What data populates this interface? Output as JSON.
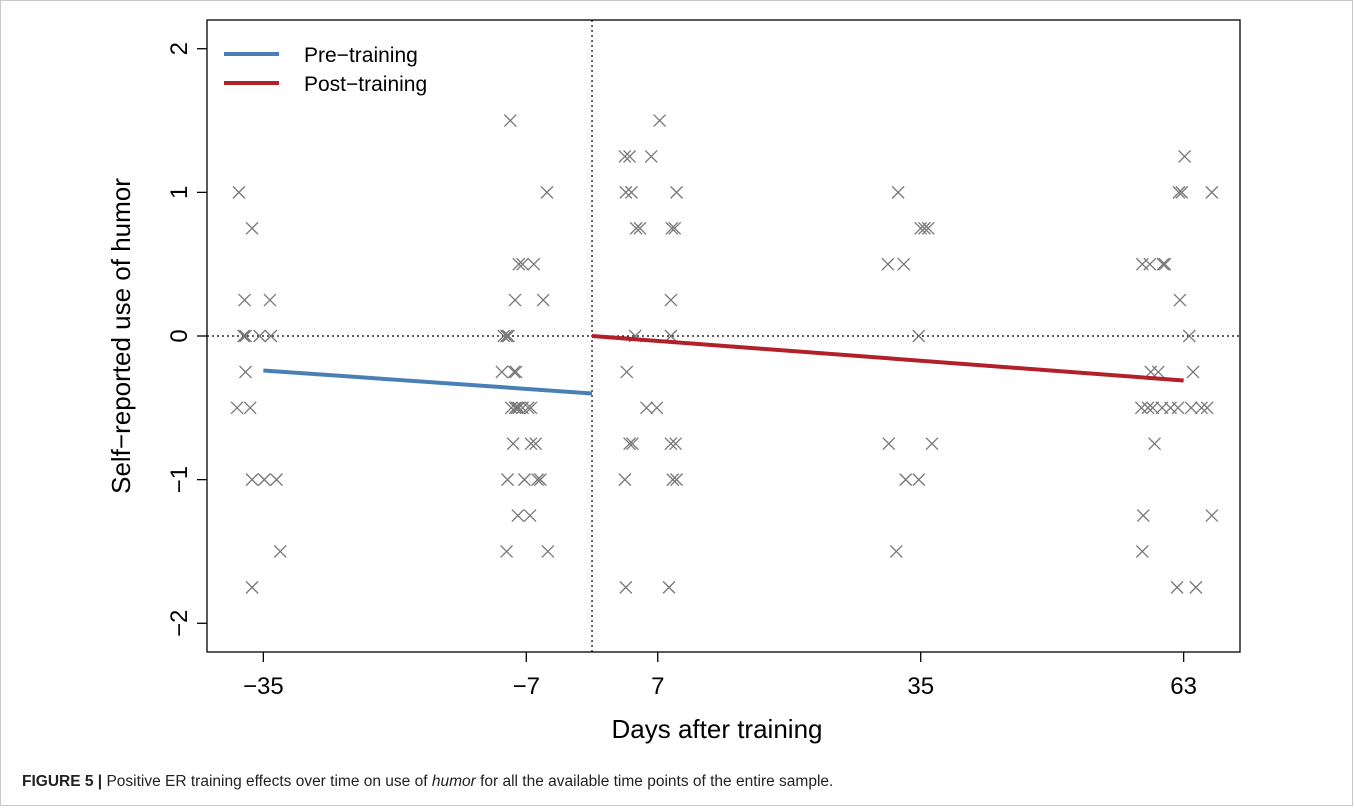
{
  "caption": {
    "label": "FIGURE 5 |",
    "text_before": " Positive ER training effects over time on use of ",
    "emphasis": "humor",
    "text_after": " for all the available time points of the entire sample."
  },
  "chart_data": {
    "type": "scatter",
    "title": "",
    "xlabel": "Days after training",
    "ylabel": "Self−reported use of humor",
    "xlim": [
      -41,
      69
    ],
    "ylim": [
      -2.2,
      2.2
    ],
    "xticks": [
      -35,
      -7,
      7,
      35,
      63
    ],
    "xtick_labels": [
      "−35",
      "−7",
      "7",
      "35",
      "63"
    ],
    "yticks": [
      -2,
      -1,
      0,
      1,
      2
    ],
    "ytick_labels": [
      "−2",
      "−1",
      "0",
      "1",
      "2"
    ],
    "grid": false,
    "legend_position": "top-left",
    "reference_lines": {
      "vertical_x": 0,
      "horizontal_y": 0
    },
    "marker": "x",
    "marker_color": "#777777",
    "series": [
      {
        "name": "Pre−training",
        "color": "#4a7fb5",
        "x": [
          -35,
          0
        ],
        "y": [
          -0.24,
          -0.4
        ]
      },
      {
        "name": "Post−training",
        "color": "#b2202a",
        "x": [
          0,
          63
        ],
        "y": [
          0.0,
          -0.31
        ]
      }
    ],
    "points": [
      [
        -37.6,
        1.0
      ],
      [
        -36.2,
        0.75
      ],
      [
        -37.0,
        0.25
      ],
      [
        -34.3,
        0.25
      ],
      [
        -36.9,
        0.0
      ],
      [
        -37.1,
        0.0
      ],
      [
        -35.4,
        0.0
      ],
      [
        -34.2,
        0.0
      ],
      [
        -36.9,
        -0.25
      ],
      [
        -37.8,
        -0.5
      ],
      [
        -36.4,
        -0.5
      ],
      [
        -36.2,
        -1.0
      ],
      [
        -34.9,
        -1.0
      ],
      [
        -33.6,
        -1.0
      ],
      [
        -33.2,
        -1.5
      ],
      [
        -36.2,
        -1.75
      ],
      [
        -8.7,
        1.5
      ],
      [
        -4.8,
        1.0
      ],
      [
        -7.8,
        0.5
      ],
      [
        -7.4,
        0.5
      ],
      [
        -6.2,
        0.5
      ],
      [
        -8.2,
        0.25
      ],
      [
        -5.2,
        0.25
      ],
      [
        -9.4,
        0.0
      ],
      [
        -9.1,
        0.0
      ],
      [
        -8.9,
        0.0
      ],
      [
        -9.6,
        -0.25
      ],
      [
        -8.3,
        -0.25
      ],
      [
        -8.1,
        -0.25
      ],
      [
        -8.6,
        -0.5
      ],
      [
        -8.2,
        -0.5
      ],
      [
        -8.0,
        -0.5
      ],
      [
        -7.8,
        -0.5
      ],
      [
        -7.4,
        -0.5
      ],
      [
        -6.8,
        -0.5
      ],
      [
        -6.5,
        -0.5
      ],
      [
        -8.4,
        -0.75
      ],
      [
        -6.5,
        -0.75
      ],
      [
        -6.0,
        -0.75
      ],
      [
        -9.0,
        -1.0
      ],
      [
        -7.2,
        -1.0
      ],
      [
        -5.8,
        -1.0
      ],
      [
        -5.5,
        -1.0
      ],
      [
        -7.9,
        -1.25
      ],
      [
        -6.6,
        -1.25
      ],
      [
        -9.1,
        -1.5
      ],
      [
        -4.7,
        -1.5
      ],
      [
        3.5,
        1.25
      ],
      [
        4.0,
        1.25
      ],
      [
        6.3,
        1.25
      ],
      [
        7.2,
        1.5
      ],
      [
        3.6,
        1.0
      ],
      [
        4.2,
        1.0
      ],
      [
        9.0,
        1.0
      ],
      [
        4.7,
        0.75
      ],
      [
        5.1,
        0.75
      ],
      [
        8.5,
        0.75
      ],
      [
        8.8,
        0.75
      ],
      [
        8.4,
        0.25
      ],
      [
        4.6,
        0.0
      ],
      [
        8.4,
        0.0
      ],
      [
        3.7,
        -0.25
      ],
      [
        5.8,
        -0.5
      ],
      [
        6.9,
        -0.5
      ],
      [
        4.0,
        -0.75
      ],
      [
        4.3,
        -0.75
      ],
      [
        8.4,
        -0.75
      ],
      [
        8.9,
        -0.75
      ],
      [
        3.5,
        -1.0
      ],
      [
        8.6,
        -1.0
      ],
      [
        9.0,
        -1.0
      ],
      [
        3.6,
        -1.75
      ],
      [
        8.2,
        -1.75
      ],
      [
        32.6,
        1.0
      ],
      [
        31.5,
        0.5
      ],
      [
        33.2,
        0.5
      ],
      [
        35.0,
        0.75
      ],
      [
        35.4,
        0.75
      ],
      [
        35.8,
        0.75
      ],
      [
        34.8,
        0.0
      ],
      [
        31.6,
        -0.75
      ],
      [
        36.2,
        -0.75
      ],
      [
        33.4,
        -1.0
      ],
      [
        34.8,
        -1.0
      ],
      [
        32.4,
        -1.5
      ],
      [
        58.6,
        0.5
      ],
      [
        59.4,
        0.5
      ],
      [
        60.8,
        0.5
      ],
      [
        61.0,
        0.5
      ],
      [
        63.1,
        1.25
      ],
      [
        62.5,
        1.0
      ],
      [
        62.8,
        1.0
      ],
      [
        66.0,
        1.0
      ],
      [
        62.6,
        0.25
      ],
      [
        63.6,
        0.0
      ],
      [
        59.5,
        -0.25
      ],
      [
        60.3,
        -0.25
      ],
      [
        64.0,
        -0.25
      ],
      [
        58.5,
        -0.5
      ],
      [
        59.2,
        -0.5
      ],
      [
        59.7,
        -0.5
      ],
      [
        60.7,
        -0.5
      ],
      [
        61.6,
        -0.5
      ],
      [
        62.4,
        -0.5
      ],
      [
        63.8,
        -0.5
      ],
      [
        64.9,
        -0.5
      ],
      [
        65.5,
        -0.5
      ],
      [
        59.9,
        -0.75
      ],
      [
        58.7,
        -1.25
      ],
      [
        66.0,
        -1.25
      ],
      [
        58.6,
        -1.5
      ],
      [
        62.3,
        -1.75
      ],
      [
        64.3,
        -1.75
      ]
    ]
  }
}
